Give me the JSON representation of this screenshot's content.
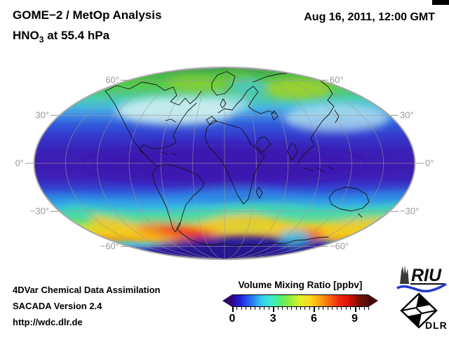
{
  "header": {
    "title_line1": "GOME−2 / MetOp Analysis",
    "title_line2_prefix": "HNO",
    "title_line2_sub": "3",
    "title_line2_suffix": " at 55.4 hPa",
    "date": "Aug 16, 2011, 12:00 GMT"
  },
  "map": {
    "projection": "elliptical pseudocylindrical world projection (Mollweide-style)",
    "lat_labels_left": [
      "60°",
      "30°",
      "0°",
      "−30°",
      "−60°"
    ],
    "lat_labels_right": [
      "60°",
      "30°",
      "0°",
      "−30°",
      "−60°"
    ],
    "graticule_color": "#9a9a9a",
    "coastline_color": "#141414"
  },
  "colorbar": {
    "title": "Volume Mixing Ratio [ppbv]",
    "tick_labels": [
      "0",
      "3",
      "6",
      "9"
    ],
    "tick_values": [
      0,
      3,
      6,
      9
    ],
    "min": 0,
    "max": 10,
    "minor_tick_step": 0.3333,
    "gradient": [
      "#2d0096",
      "#1f2ae0",
      "#2877f0",
      "#35c8f0",
      "#3cecd2",
      "#55ee6e",
      "#97ee38",
      "#dff028",
      "#fbd81a",
      "#fba512",
      "#f9680e",
      "#f0280c",
      "#d81208",
      "#7e0d05",
      "#4a1208"
    ],
    "left_arrow_color": "#2a0a66",
    "right_arrow_color": "#43090a"
  },
  "footer": {
    "line1": "4DVar Chemical Data Assimilation",
    "line2": "SACADA Version 2.4",
    "line3": "http://wdc.dlr.de"
  },
  "logos": {
    "riu_text": "RIU",
    "dlr_text": "DLR",
    "riu_swoosh_color": "#2238cc"
  },
  "chart_data": {
    "type": "heatmap",
    "title": "GOME−2 / MetOp Analysis — HNO3 at 55.4 hPa",
    "timestamp": "Aug 16, 2011, 12:00 GMT",
    "quantity": "Volume Mixing Ratio",
    "units": "ppbv",
    "colorbar_range": [
      0,
      10
    ],
    "colorbar_ticks": [
      0,
      3,
      6,
      9
    ],
    "latitude_gridlines_deg": [
      60,
      30,
      0,
      -30,
      -60
    ],
    "field_by_latitude_band": [
      {
        "band": "60N-90N",
        "value_ppbv": 4,
        "appearance": "green, maxima ~5 over Siberia and northern Canada/Greenland"
      },
      {
        "band": "40N-60N",
        "value_ppbv": 2.5,
        "appearance": "cyan with pale whitish band over N. America and E. Asia"
      },
      {
        "band": "20N-40N",
        "value_ppbv": 1.5,
        "appearance": "blue"
      },
      {
        "band": "20S-20N",
        "value_ppbv": 0.5,
        "appearance": "dark indigo tropics"
      },
      {
        "band": "25S-45S",
        "value_ppbv": 2.5,
        "appearance": "cyan, wavy structure"
      },
      {
        "band": "50S-65S",
        "value_ppbv": 7,
        "appearance": "yellow-orange-red circumpolar band, maxima ~9 south of South America"
      },
      {
        "band": "65S-90S",
        "value_ppbv": 0.8,
        "appearance": "dark indigo over Antarctica"
      }
    ]
  }
}
